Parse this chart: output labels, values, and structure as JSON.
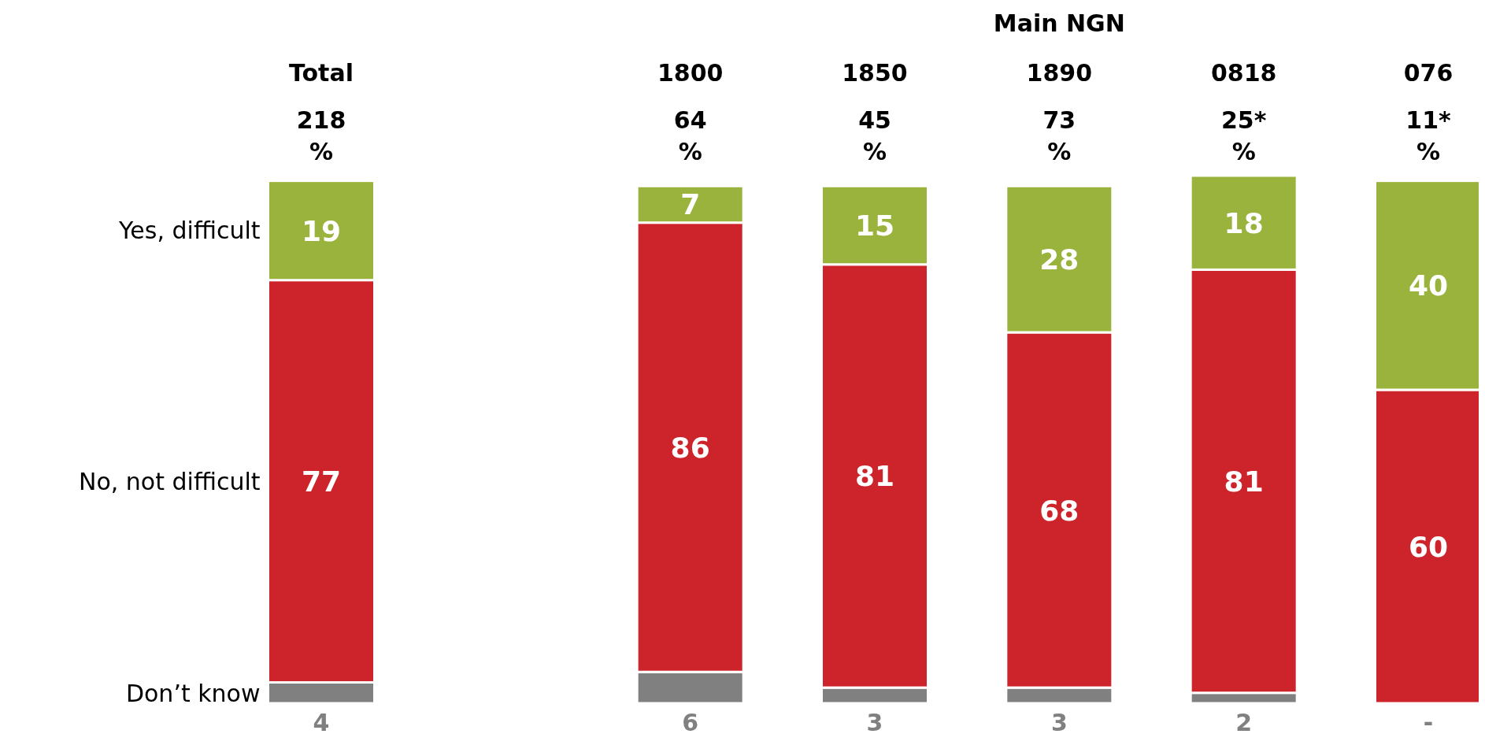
{
  "chart_data": {
    "type": "bar",
    "stacked": true,
    "legend": "left",
    "annotations": [
      "Main NGN"
    ],
    "categories": [
      "Total\n218\n%",
      null,
      "1800\n64\n%",
      "1850\n45\n%",
      "1890\n73\n%",
      "0818\n25*\n%",
      "076\n11*\n%"
    ],
    "series": [
      {
        "name": "Don’t know",
        "color": "#808080",
        "values": [
          4,
          null,
          6,
          3,
          3,
          2,
          0
        ],
        "value_labels": [
          "4",
          null,
          "6",
          "3",
          "3",
          "2",
          "-"
        ]
      },
      {
        "name": "No, not difficult",
        "color": "#cd232b",
        "values": [
          77,
          null,
          86,
          81,
          68,
          81,
          60
        ],
        "value_labels": [
          "77",
          null,
          "86",
          "81",
          "68",
          "81",
          "60"
        ]
      },
      {
        "name": "Yes, difficult",
        "color": "#9ab33d",
        "values": [
          19,
          null,
          7,
          15,
          28,
          18,
          40
        ],
        "value_labels": [
          "19",
          null,
          "7",
          "15",
          "28",
          "18",
          "40"
        ]
      }
    ]
  }
}
